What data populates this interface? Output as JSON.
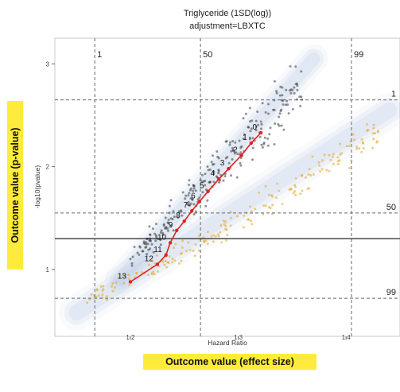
{
  "chart_data": {
    "type": "scatter",
    "title": "Triglyceride (1SD(log))",
    "subtitle": "adjustment=LBXTC",
    "xlabel": "Hazard Ratio",
    "ylabel": "-log10(pvalue)",
    "xlim": [
      1.13,
      1.45
    ],
    "ylim": [
      0.35,
      3.25
    ],
    "x_ticks": [
      "1.2",
      "1.3",
      "1.4"
    ],
    "y_ticks": [
      "1",
      "2",
      "3"
    ],
    "x_percentile_lines": [
      {
        "label": "1",
        "x": 1.167
      },
      {
        "label": "50",
        "x": 1.265
      },
      {
        "label": "99",
        "x": 1.405
      }
    ],
    "y_percentile_lines": [
      {
        "label": "1",
        "y": 2.65
      },
      {
        "label": "50",
        "y": 1.55
      },
      {
        "label": "99",
        "y": 0.72
      }
    ],
    "threshold_line_y": 1.3,
    "series": [
      {
        "color": "#2b2b2b",
        "bands": [
          {
            "x": 1.2,
            "y_low": 0.96,
            "y_high": 1.26
          },
          {
            "x": 1.22,
            "y_low": 1.13,
            "y_high": 1.48
          },
          {
            "x": 1.24,
            "y_low": 1.3,
            "y_high": 1.73
          },
          {
            "x": 1.26,
            "y_low": 1.48,
            "y_high": 1.98
          },
          {
            "x": 1.28,
            "y_low": 1.66,
            "y_high": 2.24
          },
          {
            "x": 1.3,
            "y_low": 1.84,
            "y_high": 2.5
          },
          {
            "x": 1.32,
            "y_low": 2.02,
            "y_high": 2.76
          },
          {
            "x": 1.34,
            "y_low": 2.22,
            "y_high": 2.98
          },
          {
            "x": 1.36,
            "y_low": 2.42,
            "y_high": 3.12
          }
        ]
      },
      {
        "color": "#e6a51c",
        "bands": [
          {
            "x": 1.16,
            "y_low": 0.6,
            "y_high": 0.82
          },
          {
            "x": 1.2,
            "y_low": 0.78,
            "y_high": 1.02
          },
          {
            "x": 1.24,
            "y_low": 0.98,
            "y_high": 1.26
          },
          {
            "x": 1.28,
            "y_low": 1.18,
            "y_high": 1.52
          },
          {
            "x": 1.32,
            "y_low": 1.4,
            "y_high": 1.8
          },
          {
            "x": 1.36,
            "y_low": 1.62,
            "y_high": 2.08
          },
          {
            "x": 1.4,
            "y_low": 1.86,
            "y_high": 2.36
          },
          {
            "x": 1.43,
            "y_low": 2.06,
            "y_high": 2.62
          }
        ]
      }
    ],
    "path": {
      "color": "#e02020",
      "points": [
        {
          "label": "0",
          "x": 1.321,
          "y": 2.33
        },
        {
          "label": "1",
          "x": 1.312,
          "y": 2.23
        },
        {
          "label": "2",
          "x": 1.303,
          "y": 2.11
        },
        {
          "label": "3",
          "x": 1.291,
          "y": 1.98
        },
        {
          "label": "4",
          "x": 1.282,
          "y": 1.88
        },
        {
          "label": "5",
          "x": 1.272,
          "y": 1.76
        },
        {
          "label": "6",
          "x": 1.264,
          "y": 1.66
        },
        {
          "label": "7",
          "x": 1.257,
          "y": 1.57
        },
        {
          "label": "8",
          "x": 1.25,
          "y": 1.47
        },
        {
          "label": "9",
          "x": 1.243,
          "y": 1.38
        },
        {
          "label": "10",
          "x": 1.237,
          "y": 1.26
        },
        {
          "label": "11",
          "x": 1.233,
          "y": 1.14
        },
        {
          "label": "12",
          "x": 1.225,
          "y": 1.05
        },
        {
          "label": "13",
          "x": 1.2,
          "y": 0.88
        }
      ]
    }
  },
  "annotations": {
    "x_highlight": "Outcome value (effect size)",
    "y_highlight": "Outcome value (p-value)"
  }
}
